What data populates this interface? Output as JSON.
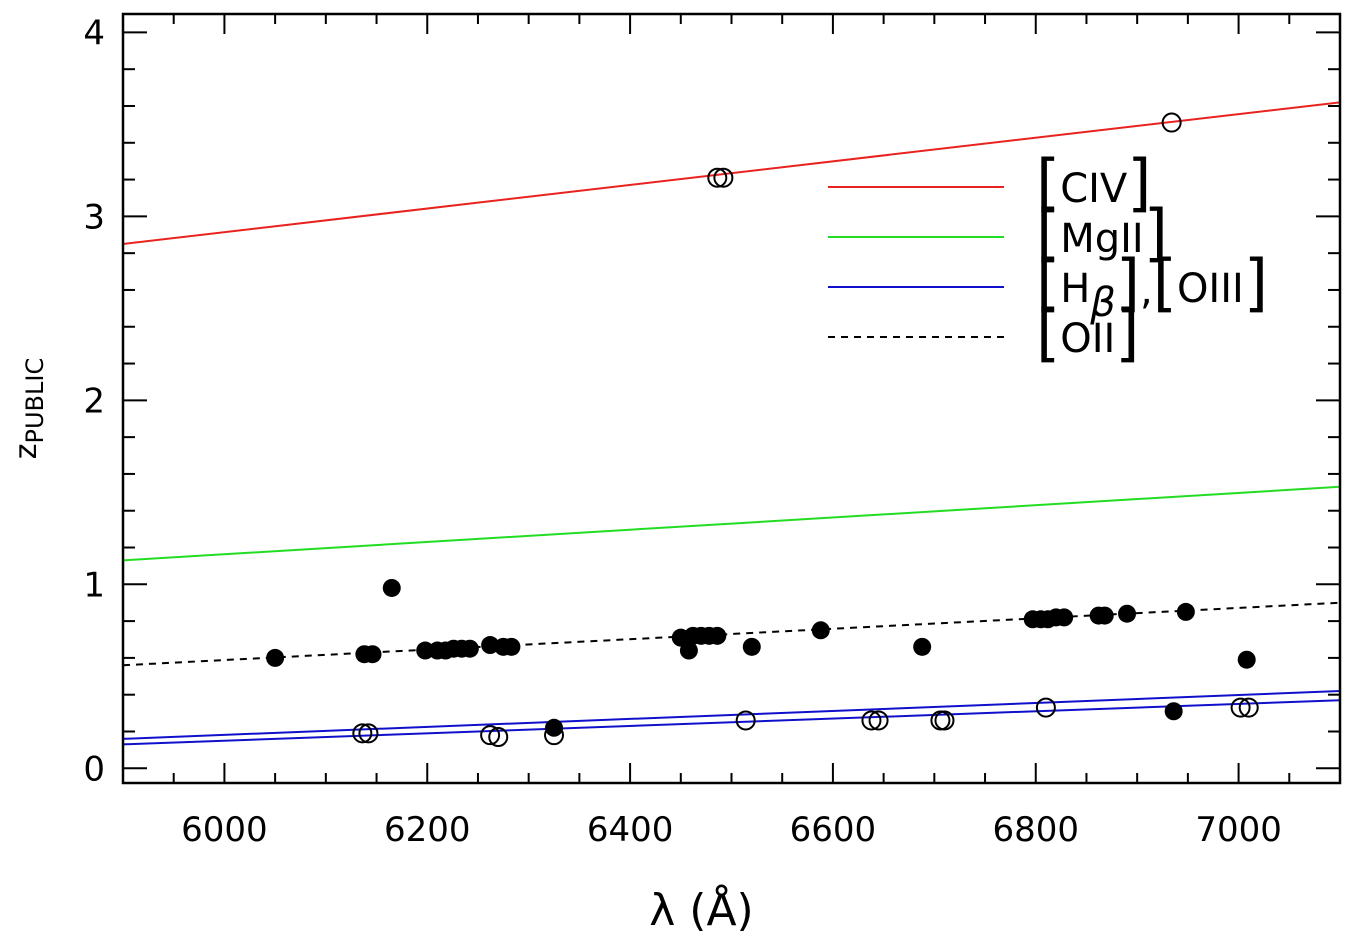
{
  "chart_data": {
    "type": "scatter",
    "xlabel": "λ (Å)",
    "ylabel": "z",
    "ylabel_subscript": "PUBLIC",
    "xlim": [
      5900,
      7100
    ],
    "ylim": [
      -0.08,
      4.1
    ],
    "x_ticks": [
      6000,
      6200,
      6400,
      6600,
      6800,
      7000
    ],
    "y_ticks": [
      0,
      1,
      2,
      3,
      4
    ],
    "x_tick_labels": [
      "6000",
      "6200",
      "6400",
      "6600",
      "6800",
      "7000"
    ],
    "y_tick_labels": [
      "0",
      "1",
      "2",
      "3",
      "4"
    ],
    "x_minor_step": 50,
    "y_minor_step": 0.2,
    "grid": false,
    "legend_position": "upper-right",
    "lines": [
      {
        "name": "[CIV]",
        "color": "#e8231f",
        "dash": "solid",
        "points": [
          [
            5900,
            2.85
          ],
          [
            7100,
            3.62
          ]
        ]
      },
      {
        "name": "[MgII]",
        "color": "#22dd22",
        "dash": "solid",
        "points": [
          [
            5900,
            1.13
          ],
          [
            7100,
            1.53
          ]
        ]
      },
      {
        "name": "[Hβ],[OIII]",
        "color": "#1010cc",
        "dash": "solid",
        "points": [
          [
            5900,
            0.16
          ],
          [
            7100,
            0.42
          ]
        ]
      },
      {
        "name": "[Hβ],[OIII]",
        "color": "#1010cc",
        "dash": "solid",
        "points": [
          [
            5900,
            0.13
          ],
          [
            7100,
            0.37
          ]
        ]
      },
      {
        "name": "[OII]",
        "color": "#000000",
        "dash": "dashed",
        "points": [
          [
            5900,
            0.56
          ],
          [
            7100,
            0.9
          ]
        ]
      }
    ],
    "legend": [
      {
        "name": "[CIV]",
        "main": "CIV",
        "sub": "",
        "suffix": "",
        "color": "#e8231f",
        "dash": "solid"
      },
      {
        "name": "[MgII]",
        "main": "MgII",
        "sub": "",
        "suffix": "",
        "color": "#22dd22",
        "dash": "solid"
      },
      {
        "name": "[Hβ],[OIII]",
        "main": "H",
        "sub": "β",
        "suffix": "OIII",
        "color": "#1010cc",
        "dash": "solid"
      },
      {
        "name": "[OII]",
        "main": "OII",
        "sub": "",
        "suffix": "",
        "color": "#000000",
        "dash": "dashed"
      }
    ],
    "filled_points": [
      [
        6050,
        0.6
      ],
      [
        6138,
        0.62
      ],
      [
        6146,
        0.62
      ],
      [
        6165,
        0.98
      ],
      [
        6198,
        0.64
      ],
      [
        6210,
        0.64
      ],
      [
        6218,
        0.64
      ],
      [
        6226,
        0.65
      ],
      [
        6234,
        0.65
      ],
      [
        6242,
        0.65
      ],
      [
        6262,
        0.67
      ],
      [
        6275,
        0.66
      ],
      [
        6283,
        0.66
      ],
      [
        6450,
        0.71
      ],
      [
        6458,
        0.64
      ],
      [
        6462,
        0.72
      ],
      [
        6470,
        0.72
      ],
      [
        6478,
        0.72
      ],
      [
        6486,
        0.72
      ],
      [
        6520,
        0.66
      ],
      [
        6588,
        0.75
      ],
      [
        6688,
        0.66
      ],
      [
        6797,
        0.81
      ],
      [
        6805,
        0.81
      ],
      [
        6812,
        0.81
      ],
      [
        6820,
        0.82
      ],
      [
        6828,
        0.82
      ],
      [
        6862,
        0.83
      ],
      [
        6868,
        0.83
      ],
      [
        6890,
        0.84
      ],
      [
        6948,
        0.85
      ],
      [
        6936,
        0.31
      ],
      [
        7008,
        0.59
      ],
      [
        6325,
        0.22
      ]
    ],
    "open_points": [
      [
        6486,
        3.21
      ],
      [
        6492,
        3.21
      ],
      [
        6934,
        3.51
      ],
      [
        6136,
        0.19
      ],
      [
        6142,
        0.19
      ],
      [
        6262,
        0.18
      ],
      [
        6270,
        0.17
      ],
      [
        6325,
        0.18
      ],
      [
        6514,
        0.26
      ],
      [
        6638,
        0.26
      ],
      [
        6645,
        0.26
      ],
      [
        6706,
        0.26
      ],
      [
        6710,
        0.26
      ],
      [
        6810,
        0.33
      ],
      [
        7002,
        0.33
      ],
      [
        7010,
        0.33
      ]
    ]
  }
}
